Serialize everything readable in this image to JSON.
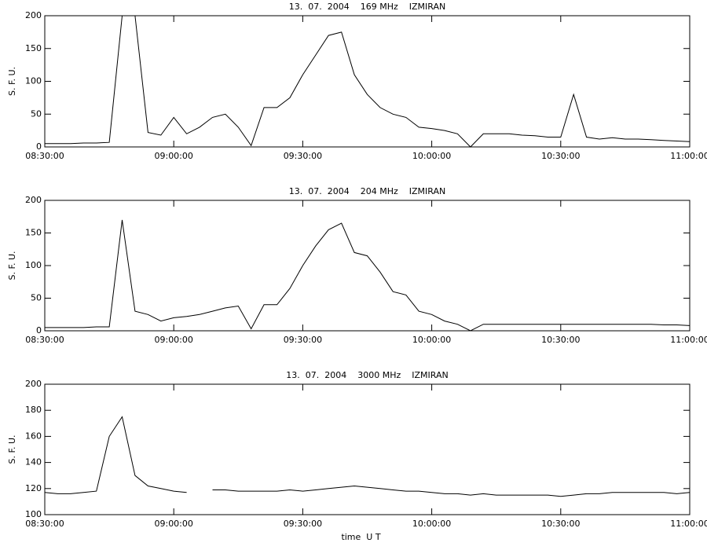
{
  "chart_data": [
    {
      "type": "line",
      "title": "13.  07.  2004    169 MHz    IZMIRAN",
      "ylabel": "S. F. U.",
      "color": "#000000",
      "x": [
        "08:30:00",
        "08:33:00",
        "08:36:00",
        "08:39:00",
        "08:42:00",
        "08:45:00",
        "08:48:00",
        "08:51:00",
        "08:54:00",
        "08:57:00",
        "09:00:00",
        "09:03:00",
        "09:06:00",
        "09:09:00",
        "09:12:00",
        "09:15:00",
        "09:18:00",
        "09:21:00",
        "09:24:00",
        "09:27:00",
        "09:30:00",
        "09:33:00",
        "09:36:00",
        "09:39:00",
        "09:42:00",
        "09:45:00",
        "09:48:00",
        "09:51:00",
        "09:54:00",
        "09:57:00",
        "10:00:00",
        "10:03:00",
        "10:06:00",
        "10:09:00",
        "10:12:00",
        "10:15:00",
        "10:18:00",
        "10:21:00",
        "10:24:00",
        "10:27:00",
        "10:30:00",
        "10:33:00",
        "10:36:00",
        "10:39:00",
        "10:42:00",
        "10:45:00",
        "10:48:00",
        "10:51:00",
        "10:54:00",
        "10:57:00",
        "11:00:00"
      ],
      "values": [
        5,
        5,
        5,
        6,
        6,
        7,
        200,
        200,
        22,
        18,
        45,
        20,
        30,
        45,
        50,
        30,
        2,
        60,
        60,
        75,
        110,
        140,
        170,
        175,
        110,
        80,
        60,
        50,
        45,
        30,
        28,
        25,
        20,
        0,
        20,
        20,
        20,
        18,
        17,
        15,
        15,
        80,
        15,
        12,
        14,
        12,
        12,
        11,
        10,
        9,
        8
      ],
      "xlim": [
        "08:30:00",
        "11:00:00"
      ],
      "xticks": [
        "08:30:00",
        "09:00:00",
        "09:30:00",
        "10:00:00",
        "10:30:00",
        "11:00:00"
      ],
      "ylim": [
        0,
        200
      ],
      "yticks": [
        0,
        50,
        100,
        150,
        200
      ]
    },
    {
      "type": "line",
      "title": "13.  07.  2004    204 MHz    IZMIRAN",
      "ylabel": "S. F. U.",
      "color": "#000000",
      "x": [
        "08:30:00",
        "08:33:00",
        "08:36:00",
        "08:39:00",
        "08:42:00",
        "08:45:00",
        "08:48:00",
        "08:51:00",
        "08:54:00",
        "08:57:00",
        "09:00:00",
        "09:03:00",
        "09:06:00",
        "09:09:00",
        "09:12:00",
        "09:15:00",
        "09:18:00",
        "09:21:00",
        "09:24:00",
        "09:27:00",
        "09:30:00",
        "09:33:00",
        "09:36:00",
        "09:39:00",
        "09:42:00",
        "09:45:00",
        "09:48:00",
        "09:51:00",
        "09:54:00",
        "09:57:00",
        "10:00:00",
        "10:03:00",
        "10:06:00",
        "10:09:00",
        "10:12:00",
        "10:15:00",
        "10:18:00",
        "10:21:00",
        "10:24:00",
        "10:27:00",
        "10:30:00",
        "10:33:00",
        "10:36:00",
        "10:39:00",
        "10:42:00",
        "10:45:00",
        "10:48:00",
        "10:51:00",
        "10:54:00",
        "10:57:00",
        "11:00:00"
      ],
      "values": [
        5,
        5,
        5,
        5,
        6,
        6,
        170,
        30,
        25,
        15,
        20,
        22,
        25,
        30,
        35,
        38,
        3,
        40,
        40,
        65,
        100,
        130,
        155,
        165,
        120,
        115,
        90,
        60,
        55,
        30,
        25,
        15,
        10,
        0,
        10,
        10,
        10,
        10,
        10,
        10,
        10,
        10,
        10,
        10,
        10,
        10,
        10,
        10,
        9,
        9,
        8
      ],
      "xlim": [
        "08:30:00",
        "11:00:00"
      ],
      "xticks": [
        "08:30:00",
        "09:00:00",
        "09:30:00",
        "10:00:00",
        "10:30:00",
        "11:00:00"
      ],
      "ylim": [
        0,
        200
      ],
      "yticks": [
        0,
        50,
        100,
        150,
        200
      ]
    },
    {
      "type": "line",
      "title": "13.  07.  2004    3000 MHz    IZMIRAN",
      "ylabel": "S. F. U.",
      "xlabel": "time  U T",
      "color": "#000000",
      "x": [
        "08:30:00",
        "08:33:00",
        "08:36:00",
        "08:39:00",
        "08:42:00",
        "08:45:00",
        "08:48:00",
        "08:51:00",
        "08:54:00",
        "08:57:00",
        "09:00:00",
        "09:03:00",
        "09:06:00",
        "09:09:00",
        "09:12:00",
        "09:15:00",
        "09:18:00",
        "09:21:00",
        "09:24:00",
        "09:27:00",
        "09:30:00",
        "09:33:00",
        "09:36:00",
        "09:39:00",
        "09:42:00",
        "09:45:00",
        "09:48:00",
        "09:51:00",
        "09:54:00",
        "09:57:00",
        "10:00:00",
        "10:03:00",
        "10:06:00",
        "10:09:00",
        "10:12:00",
        "10:15:00",
        "10:18:00",
        "10:21:00",
        "10:24:00",
        "10:27:00",
        "10:30:00",
        "10:33:00",
        "10:36:00",
        "10:39:00",
        "10:42:00",
        "10:45:00",
        "10:48:00",
        "10:51:00",
        "10:54:00",
        "10:57:00",
        "11:00:00"
      ],
      "values": [
        117,
        116,
        116,
        117,
        118,
        160,
        175,
        130,
        122,
        120,
        118,
        117,
        null,
        119,
        119,
        118,
        118,
        118,
        118,
        119,
        118,
        119,
        120,
        121,
        122,
        121,
        120,
        119,
        118,
        118,
        117,
        116,
        116,
        115,
        116,
        115,
        115,
        115,
        115,
        115,
        114,
        115,
        116,
        116,
        117,
        117,
        117,
        117,
        117,
        116,
        117
      ],
      "xlim": [
        "08:30:00",
        "11:00:00"
      ],
      "xticks": [
        "08:30:00",
        "09:00:00",
        "09:30:00",
        "10:00:00",
        "10:30:00",
        "11:00:00"
      ],
      "ylim": [
        100,
        200
      ],
      "yticks": [
        100,
        120,
        140,
        160,
        180,
        200
      ]
    }
  ]
}
